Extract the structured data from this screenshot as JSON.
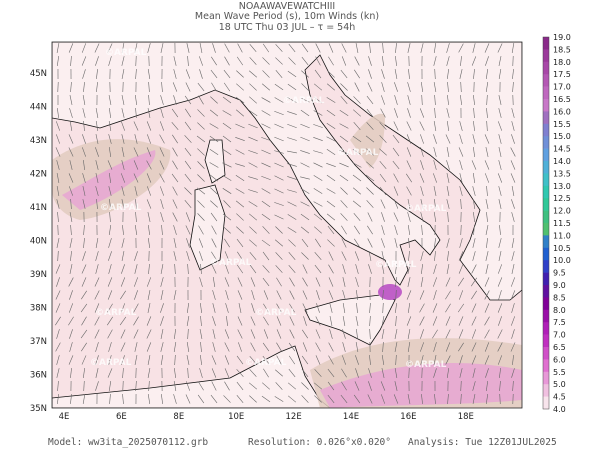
{
  "header": {
    "model_name": "NOAAWAVEWATCHIII",
    "title": "Mean Wave Period (s), 10m Winds (kn)",
    "subtitle": "18 UTC Thu 03 JUL  –  τ = 54h"
  },
  "map": {
    "lon_labels": [
      "4E",
      "6E",
      "8E",
      "10E",
      "12E",
      "14E",
      "16E",
      "18E"
    ],
    "lat_labels": [
      "45N",
      "44N",
      "43N",
      "42N",
      "41N",
      "40N",
      "39N",
      "38N",
      "37N",
      "36N",
      "35N"
    ],
    "watermark": "©ARPAL"
  },
  "colorbar": {
    "labels": [
      "19.0",
      "18.5",
      "18.0",
      "17.5",
      "17.0",
      "16.5",
      "16.0",
      "15.5",
      "15.0",
      "14.5",
      "14.0",
      "13.5",
      "13.0",
      "12.5",
      "12.0",
      "11.5",
      "11.0",
      "10.5",
      "10.0",
      "9.5",
      "9.0",
      "8.5",
      "8.0",
      "7.5",
      "7.0",
      "6.5",
      "6.0",
      "5.5",
      "5.0",
      "4.5",
      "4.0"
    ],
    "colors": [
      "#8a2a8a",
      "#9b3a9b",
      "#a848a8",
      "#b458b4",
      "#bf68bf",
      "#c878c8",
      "#a070c0",
      "#8080d0",
      "#7090d8",
      "#60a0e0",
      "#50b0d8",
      "#40c0c8",
      "#30c8b0",
      "#30c898",
      "#40c080",
      "#50c070",
      "#3080c8",
      "#2060d0",
      "#3040c8",
      "#4020b0",
      "#6010a0",
      "#800098",
      "#9a10a8",
      "#b020b8",
      "#c030c0",
      "#d050c8",
      "#e070d0",
      "#e898d8",
      "#f0c0e0",
      "#f8e4ec"
    ]
  },
  "footer": {
    "model": "Model:  ww3ita_2025070112.grb",
    "resolution": "Resolution: 0.026°x0.020°",
    "analysis": "Analysis: Tue 12Z01JUL2025"
  }
}
